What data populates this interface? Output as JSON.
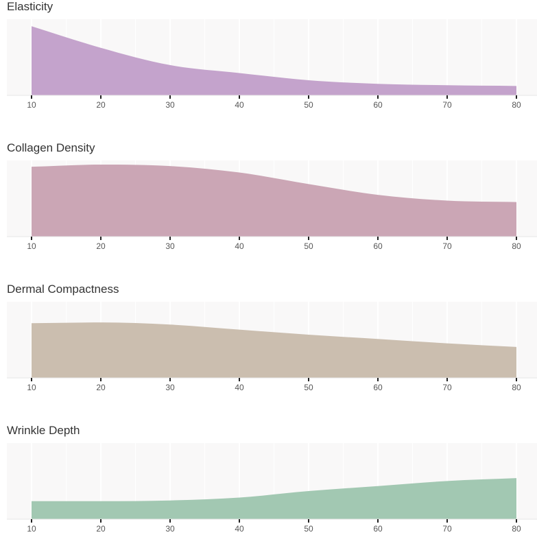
{
  "chart_data": [
    {
      "type": "area",
      "title": "Elasticity",
      "x": [
        10,
        20,
        30,
        40,
        50,
        60,
        70,
        80
      ],
      "values": [
        0.96,
        0.66,
        0.42,
        0.31,
        0.21,
        0.16,
        0.14,
        0.13
      ],
      "ylim": [
        0,
        1
      ],
      "xlim": [
        10,
        80
      ],
      "color": "#c4a3cc",
      "grid": true
    },
    {
      "type": "area",
      "title": "Collagen Density",
      "x": [
        10,
        20,
        30,
        40,
        50,
        60,
        70,
        80
      ],
      "values": [
        0.97,
        1.0,
        0.98,
        0.89,
        0.73,
        0.58,
        0.5,
        0.48
      ],
      "ylim": [
        0,
        1
      ],
      "xlim": [
        10,
        80
      ],
      "color": "#cba6b5",
      "grid": true
    },
    {
      "type": "area",
      "title": "Dermal Compactness",
      "x": [
        10,
        20,
        30,
        40,
        50,
        60,
        70,
        80
      ],
      "values": [
        0.76,
        0.77,
        0.74,
        0.67,
        0.6,
        0.54,
        0.48,
        0.43
      ],
      "ylim": [
        0,
        1
      ],
      "xlim": [
        10,
        80
      ],
      "color": "#cbbeaf",
      "grid": true
    },
    {
      "type": "area",
      "title": "Wrinkle Depth",
      "x": [
        10,
        20,
        30,
        40,
        50,
        60,
        70,
        80
      ],
      "values": [
        0.25,
        0.25,
        0.26,
        0.3,
        0.39,
        0.46,
        0.53,
        0.57
      ],
      "ylim": [
        0,
        1
      ],
      "xlim": [
        10,
        80
      ],
      "color": "#a2c8b2",
      "grid": true
    }
  ]
}
